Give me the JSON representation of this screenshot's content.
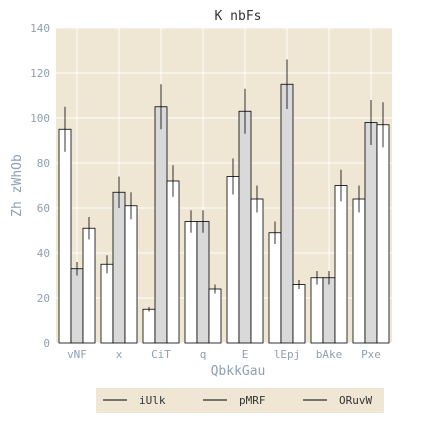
{
  "chart_data": {
    "type": "bar",
    "title": "K  nbFs",
    "xlabel": "QbkkGau",
    "ylabel": "Zh  zWhOb",
    "ylim": [
      0,
      140
    ],
    "yticks": [
      0,
      20,
      40,
      60,
      80,
      100,
      120,
      140
    ],
    "grid": true,
    "legend_position": "bottom",
    "categories": [
      "vNF",
      "x",
      "CiT",
      "q",
      "E",
      "lEpj",
      "bAke",
      "Pxe"
    ],
    "series": [
      {
        "name": "iUlk",
        "color": "#ffffff",
        "values": [
          95,
          35,
          15,
          54,
          74,
          49,
          29,
          64
        ],
        "errors": [
          10,
          4,
          1,
          5,
          8,
          5,
          3,
          6
        ]
      },
      {
        "name": "pMRF",
        "color": "#d9d9d9",
        "values": [
          33,
          67,
          105,
          54,
          103,
          115,
          29,
          98
        ],
        "errors": [
          3,
          7,
          10,
          5,
          10,
          11,
          3,
          10
        ]
      },
      {
        "name": "ORuvW",
        "color": "#ffffff",
        "values": [
          51,
          61,
          72,
          24,
          64,
          26,
          70,
          97
        ],
        "errors": [
          5,
          6,
          7,
          2,
          6,
          2,
          7,
          10
        ]
      }
    ],
    "colors": {
      "plot_background": "#efe6d3",
      "grid": "#ffffff",
      "bar_edge": "#000000",
      "error_bar": "#000000"
    }
  }
}
